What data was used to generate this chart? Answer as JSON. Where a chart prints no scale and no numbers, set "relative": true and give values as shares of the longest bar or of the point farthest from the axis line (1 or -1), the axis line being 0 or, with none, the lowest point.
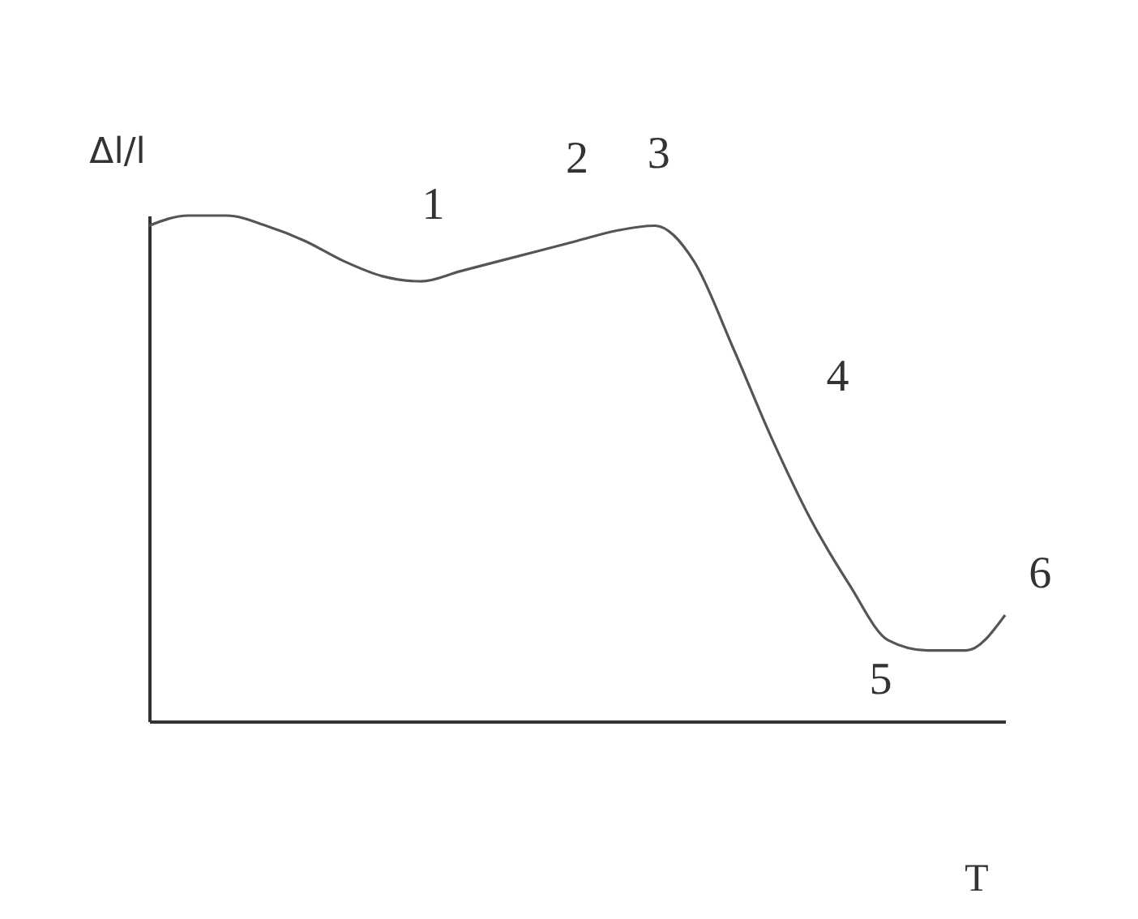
{
  "chart_data": {
    "type": "line",
    "relative": true,
    "xlabel": "T",
    "ylabel": "Δl/l",
    "categories": [
      null,
      null,
      null,
      null,
      null,
      null,
      null,
      null,
      null,
      null,
      null,
      null,
      null,
      null,
      null,
      null,
      null,
      null,
      null,
      null,
      null,
      null,
      null
    ],
    "series": [
      {
        "color": "#555555",
        "values": [
          0.98,
          1.0,
          1.0,
          0.98,
          0.95,
          0.91,
          0.88,
          0.87,
          0.89,
          0.91,
          0.93,
          0.95,
          0.97,
          0.98,
          0.91,
          0.74,
          0.56,
          0.4,
          0.27,
          0.16,
          0.14,
          0.14,
          0.21
        ]
      }
    ],
    "annotations": [
      "1",
      "2",
      "3",
      "4",
      "5",
      "6"
    ],
    "grid": false,
    "marker": "none",
    "line_style": "solid",
    "tick_labels": false
  }
}
